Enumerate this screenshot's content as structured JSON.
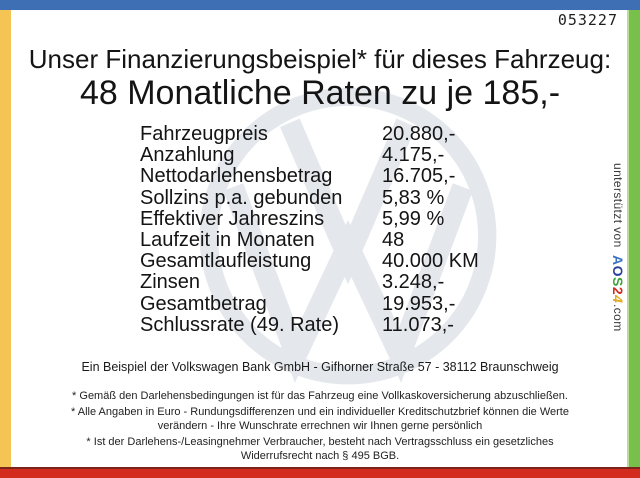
{
  "frame": {
    "top_color": "#3E6FB4",
    "left_color": "#F4C455",
    "right_color": "#77C04C",
    "bottom_color": "#D32B1E"
  },
  "header": {
    "doc_number": "053227"
  },
  "title": "Unser Finanzierungsbeispiel* für dieses Fahrzeug:",
  "subtitle": "48 Monatliche Raten zu je 185,-",
  "finance_table": {
    "rows": [
      {
        "label": "Fahrzeugpreis",
        "value": "20.880,-"
      },
      {
        "label": "Anzahlung",
        "value": "4.175,-"
      },
      {
        "label": "Nettodarlehensbetrag",
        "value": "16.705,-"
      },
      {
        "label": "Sollzins p.a. gebunden",
        "value": "5,83 %"
      },
      {
        "label": "Effektiver Jahreszins",
        "value": "5,99 %"
      },
      {
        "label": "Laufzeit in Monaten",
        "value": "48"
      },
      {
        "label": "Gesamtlaufleistung",
        "value": "40.000 KM"
      },
      {
        "label": "Zinsen",
        "value": "3.248,-"
      },
      {
        "label": "Gesamtbetrag",
        "value": "19.953,-"
      },
      {
        "label": "Schlussrate (49. Rate)",
        "value": "11.073,-"
      }
    ]
  },
  "watermark": {
    "icon": "vw-logo",
    "color": "#e4e8ed"
  },
  "sidebar": {
    "supported_by": "unterstützt von",
    "brand": {
      "letters": [
        {
          "ch": "A",
          "color": "#3D72C2"
        },
        {
          "ch": "O",
          "color": "#2A3F9B"
        },
        {
          "ch": "S",
          "color": "#3FA33C"
        },
        {
          "ch": "2",
          "color": "#D22B1E"
        },
        {
          "ch": "4",
          "color": "#E3A81F"
        }
      ],
      "suffix": ".com"
    }
  },
  "footer": {
    "bank_line": "Ein Beispiel der Volkswagen Bank GmbH - Gifhorner Straße 57 - 38112 Braunschweig",
    "disclaimers": [
      {
        "lines": [
          "* Gemäß den Darlehensbedingungen ist für das Fahrzeug eine Vollkaskoversicherung abzuschließen."
        ]
      },
      {
        "lines": [
          "* Alle Angaben in Euro - Rundungsdifferenzen und ein individueller Kreditschutzbrief können die Werte",
          "verändern - Ihre Wunschrate errechnen wir Ihnen gerne persönlich"
        ]
      },
      {
        "lines": [
          "* Ist der Darlehens-/Leasingnehmer Verbraucher, besteht nach Vertragsschluss ein gesetzliches",
          "Widerrufsrecht nach § 495 BGB."
        ]
      }
    ]
  }
}
